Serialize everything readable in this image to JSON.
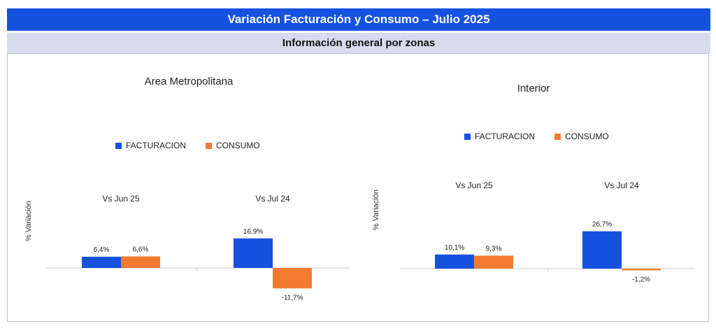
{
  "header": {
    "title": "Variación Facturación y Consumo – Julio 2025",
    "subtitle": "Información general por zonas"
  },
  "colors": {
    "facturacion": "#1652e0",
    "consumo": "#f47a32",
    "title_bg": "#1652e0",
    "subtitle_bg": "#d7dbec"
  },
  "chart_data": [
    {
      "type": "bar",
      "title": "Area Metropolitana",
      "ylabel": "% Variación",
      "legend_position": "top",
      "categories": [
        "Vs Jun 25",
        "Vs Jul 24"
      ],
      "series": [
        {
          "name": "FACTURACION",
          "values": [
            6.4,
            16.9
          ],
          "labels": [
            "6,4%",
            "16,9%"
          ]
        },
        {
          "name": "CONSUMO",
          "values": [
            6.6,
            -11.7
          ],
          "labels": [
            "6,6%",
            "-11,7%"
          ]
        }
      ]
    },
    {
      "type": "bar",
      "title": "Interior",
      "ylabel": "% Variación",
      "legend_position": "top",
      "categories": [
        "Vs Jun 25",
        "Vs Jul 24"
      ],
      "series": [
        {
          "name": "FACTURACION",
          "values": [
            10.1,
            26.7
          ],
          "labels": [
            "10,1%",
            "26,7%"
          ]
        },
        {
          "name": "CONSUMO",
          "values": [
            9.3,
            -1.2
          ],
          "labels": [
            "9,3%",
            "-1,2%"
          ]
        }
      ]
    }
  ]
}
